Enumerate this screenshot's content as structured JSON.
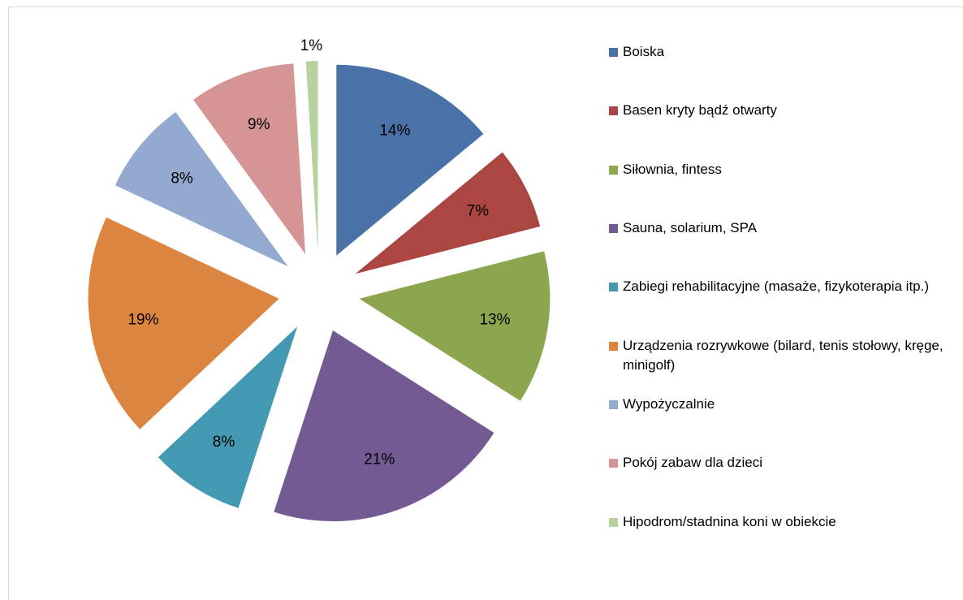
{
  "chart_data": {
    "type": "pie",
    "categories": [
      "Boiska",
      "Basen kryty bądź otwarty",
      "Siłownia, fintess",
      "Sauna, solarium, SPA",
      "Zabiegi rehabilitacyjne (masaże, fizykoterapia itp.)",
      "Urządzenia rozrywkowe (bilard, tenis stołowy, kręge, minigolf)",
      "Wypożyczalnie",
      "Pokój zabaw dla dzieci",
      "Hipodrom/stadnina koni w obiekcie"
    ],
    "values": [
      14,
      7,
      13,
      21,
      8,
      19,
      8,
      9,
      1
    ],
    "value_labels": [
      "14%",
      "7%",
      "13%",
      "21%",
      "8%",
      "19%",
      "8%",
      "9%",
      "1%"
    ],
    "colors": [
      "#4a72a8",
      "#ab4643",
      "#8ba64e",
      "#735a92",
      "#4299b1",
      "#dc8540",
      "#93a9d0",
      "#d49594",
      "#b5d29f"
    ],
    "legend": "right"
  }
}
